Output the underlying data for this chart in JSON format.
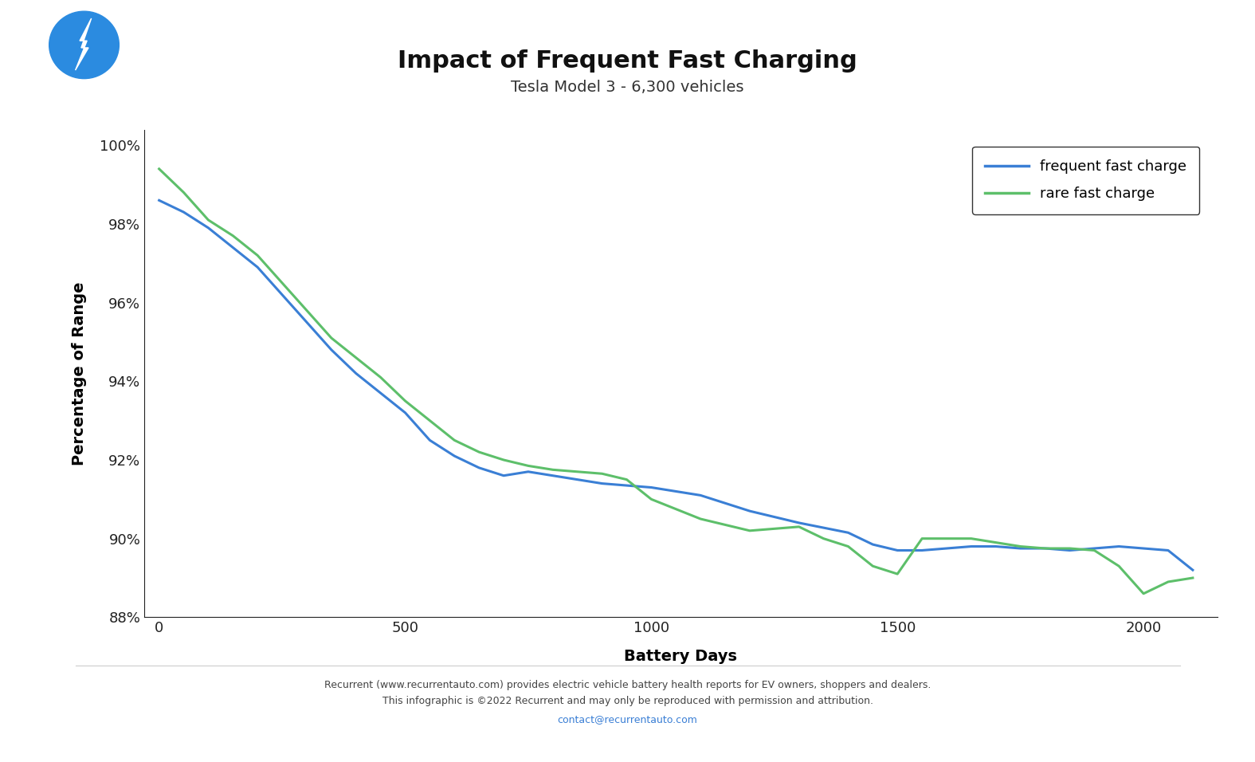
{
  "title": "Impact of Frequent Fast Charging",
  "subtitle": "Tesla Model 3 - 6,300 vehicles",
  "xlabel": "Battery Days",
  "ylabel": "Percentage of Range",
  "background_color": "#ffffff",
  "title_fontsize": 22,
  "subtitle_fontsize": 14,
  "axis_label_fontsize": 14,
  "tick_fontsize": 13,
  "legend_fontsize": 13,
  "footer_text": "Recurrent (www.recurrentauto.com) provides electric vehicle battery health reports for EV owners, shoppers and dealers.\nThis infographic is ©2022 Recurrent and may only be reproduced with permission and attribution.",
  "footer_email": "contact@recurrentauto.com",
  "ylim": [
    88.0,
    100.4
  ],
  "xlim": [
    -30,
    2150
  ],
  "yticks": [
    88,
    90,
    92,
    94,
    96,
    98,
    100
  ],
  "xticks": [
    0,
    500,
    1000,
    1500,
    2000
  ],
  "frequent_x": [
    0,
    50,
    100,
    150,
    200,
    250,
    300,
    350,
    400,
    450,
    500,
    550,
    600,
    650,
    700,
    750,
    800,
    850,
    900,
    950,
    1000,
    1100,
    1200,
    1300,
    1400,
    1450,
    1500,
    1550,
    1600,
    1650,
    1700,
    1750,
    1800,
    1850,
    1900,
    1950,
    2000,
    2050,
    2100
  ],
  "frequent_y": [
    98.6,
    98.3,
    97.9,
    97.4,
    96.9,
    96.2,
    95.5,
    94.8,
    94.2,
    93.7,
    93.2,
    92.5,
    92.1,
    91.8,
    91.6,
    91.7,
    91.6,
    91.5,
    91.4,
    91.35,
    91.3,
    91.1,
    90.7,
    90.4,
    90.15,
    89.85,
    89.7,
    89.7,
    89.75,
    89.8,
    89.8,
    89.75,
    89.75,
    89.7,
    89.75,
    89.8,
    89.75,
    89.7,
    89.2
  ],
  "rare_x": [
    0,
    50,
    100,
    150,
    200,
    250,
    300,
    350,
    400,
    450,
    500,
    550,
    600,
    650,
    700,
    750,
    800,
    850,
    900,
    950,
    1000,
    1100,
    1200,
    1300,
    1350,
    1400,
    1450,
    1500,
    1550,
    1600,
    1650,
    1700,
    1750,
    1800,
    1850,
    1900,
    1950,
    2000,
    2050,
    2100
  ],
  "rare_y": [
    99.4,
    98.8,
    98.1,
    97.7,
    97.2,
    96.5,
    95.8,
    95.1,
    94.6,
    94.1,
    93.5,
    93.0,
    92.5,
    92.2,
    92.0,
    91.85,
    91.75,
    91.7,
    91.65,
    91.5,
    91.0,
    90.5,
    90.2,
    90.3,
    90.0,
    89.8,
    89.3,
    89.1,
    90.0,
    90.0,
    90.0,
    89.9,
    89.8,
    89.75,
    89.75,
    89.7,
    89.3,
    88.6,
    88.9,
    89.0
  ],
  "frequent_color": "#3a7fd5",
  "rare_color": "#5dbf6a",
  "line_width": 2.2,
  "icon_color": "#2b8be0"
}
